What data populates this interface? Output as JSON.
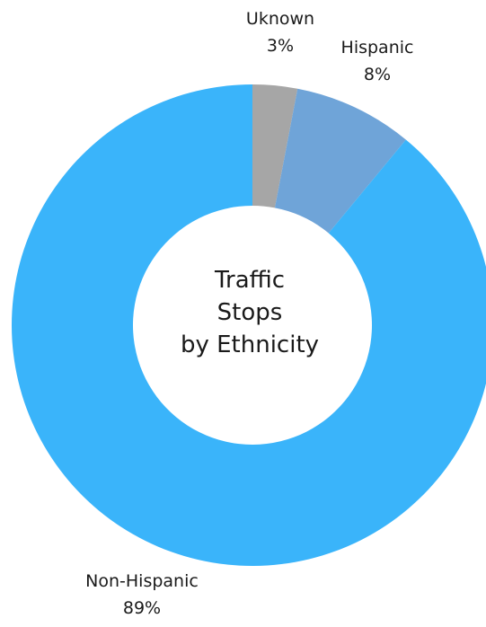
{
  "chart_data": {
    "type": "pie",
    "variant": "donut",
    "center_title_lines": [
      "Traffic",
      "Stops",
      "by Ethnicity"
    ],
    "slices": [
      {
        "label": "Uknown",
        "value": 3,
        "value_label": "3%",
        "color": "#a6a6a6"
      },
      {
        "label": "Hispanic",
        "value": 8,
        "value_label": "8%",
        "color": "#6fa4d8"
      },
      {
        "label": "Non-Hispanic",
        "value": 89,
        "value_label": "89%",
        "color": "#3ab4fa"
      }
    ],
    "start_angle": "12 o'clock",
    "direction": "clockwise",
    "legend": "none"
  }
}
